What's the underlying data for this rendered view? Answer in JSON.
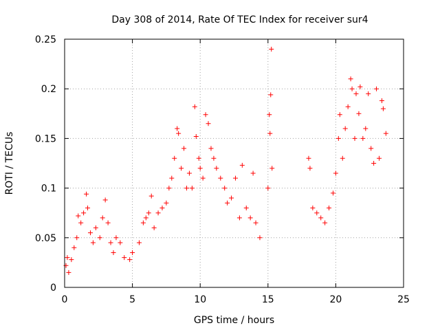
{
  "chart_data": {
    "type": "scatter",
    "title": "Day 308 of 2014, Rate Of TEC Index for receiver sur4",
    "xlabel": "GPS time / hours",
    "ylabel": "ROTI / TECUs",
    "xlim": [
      0,
      25
    ],
    "ylim": [
      0,
      0.25
    ],
    "x_ticks": [
      0,
      5,
      10,
      15,
      20,
      25
    ],
    "x_tick_labels": [
      "0",
      "5",
      "10",
      "15",
      "20",
      "25"
    ],
    "y_ticks": [
      0,
      0.05,
      0.1,
      0.15,
      0.2,
      0.25
    ],
    "y_tick_labels": [
      "0",
      "0.05",
      "0.1",
      "0.15",
      "0.2",
      "0.25"
    ],
    "grid": true,
    "marker": "+",
    "marker_color": "#ff0000",
    "series": [
      {
        "name": "ROTI",
        "points": [
          [
            0.1,
            0.022
          ],
          [
            0.2,
            0.03
          ],
          [
            0.3,
            0.015
          ],
          [
            0.5,
            0.028
          ],
          [
            0.7,
            0.04
          ],
          [
            0.9,
            0.05
          ],
          [
            1.0,
            0.072
          ],
          [
            1.2,
            0.065
          ],
          [
            1.4,
            0.075
          ],
          [
            1.6,
            0.094
          ],
          [
            1.7,
            0.08
          ],
          [
            1.9,
            0.055
          ],
          [
            2.1,
            0.045
          ],
          [
            2.3,
            0.06
          ],
          [
            2.6,
            0.05
          ],
          [
            2.8,
            0.07
          ],
          [
            3.0,
            0.088
          ],
          [
            3.2,
            0.065
          ],
          [
            3.4,
            0.045
          ],
          [
            3.6,
            0.035
          ],
          [
            3.8,
            0.05
          ],
          [
            4.1,
            0.045
          ],
          [
            4.4,
            0.03
          ],
          [
            4.8,
            0.028
          ],
          [
            5.0,
            0.035
          ],
          [
            5.5,
            0.045
          ],
          [
            5.8,
            0.065
          ],
          [
            6.0,
            0.07
          ],
          [
            6.2,
            0.075
          ],
          [
            6.4,
            0.092
          ],
          [
            6.6,
            0.06
          ],
          [
            6.9,
            0.075
          ],
          [
            7.2,
            0.08
          ],
          [
            7.5,
            0.085
          ],
          [
            7.7,
            0.1
          ],
          [
            7.9,
            0.11
          ],
          [
            8.1,
            0.13
          ],
          [
            8.3,
            0.16
          ],
          [
            8.4,
            0.155
          ],
          [
            8.6,
            0.12
          ],
          [
            8.8,
            0.14
          ],
          [
            9.0,
            0.1
          ],
          [
            9.2,
            0.115
          ],
          [
            9.4,
            0.1
          ],
          [
            9.6,
            0.182
          ],
          [
            9.7,
            0.152
          ],
          [
            9.9,
            0.13
          ],
          [
            10.0,
            0.12
          ],
          [
            10.2,
            0.11
          ],
          [
            10.4,
            0.174
          ],
          [
            10.6,
            0.165
          ],
          [
            10.8,
            0.14
          ],
          [
            11.0,
            0.13
          ],
          [
            11.2,
            0.12
          ],
          [
            11.5,
            0.11
          ],
          [
            11.8,
            0.1
          ],
          [
            12.0,
            0.085
          ],
          [
            12.3,
            0.09
          ],
          [
            12.6,
            0.11
          ],
          [
            12.9,
            0.07
          ],
          [
            13.1,
            0.123
          ],
          [
            13.4,
            0.08
          ],
          [
            13.7,
            0.07
          ],
          [
            13.9,
            0.115
          ],
          [
            14.1,
            0.065
          ],
          [
            14.4,
            0.05
          ],
          [
            15.0,
            0.1
          ],
          [
            15.1,
            0.174
          ],
          [
            15.15,
            0.155
          ],
          [
            15.2,
            0.194
          ],
          [
            15.25,
            0.24
          ],
          [
            15.3,
            0.12
          ],
          [
            18.0,
            0.13
          ],
          [
            18.1,
            0.12
          ],
          [
            18.3,
            0.08
          ],
          [
            18.6,
            0.075
          ],
          [
            18.9,
            0.07
          ],
          [
            19.2,
            0.065
          ],
          [
            19.5,
            0.08
          ],
          [
            19.8,
            0.095
          ],
          [
            20.0,
            0.115
          ],
          [
            20.2,
            0.15
          ],
          [
            20.3,
            0.174
          ],
          [
            20.5,
            0.13
          ],
          [
            20.7,
            0.16
          ],
          [
            20.9,
            0.182
          ],
          [
            21.1,
            0.21
          ],
          [
            21.2,
            0.2
          ],
          [
            21.4,
            0.15
          ],
          [
            21.5,
            0.195
          ],
          [
            21.7,
            0.175
          ],
          [
            21.8,
            0.202
          ],
          [
            22.0,
            0.15
          ],
          [
            22.2,
            0.16
          ],
          [
            22.4,
            0.195
          ],
          [
            22.6,
            0.14
          ],
          [
            22.8,
            0.125
          ],
          [
            23.0,
            0.2
          ],
          [
            23.2,
            0.13
          ],
          [
            23.4,
            0.188
          ],
          [
            23.5,
            0.18
          ],
          [
            23.7,
            0.155
          ]
        ]
      }
    ]
  }
}
